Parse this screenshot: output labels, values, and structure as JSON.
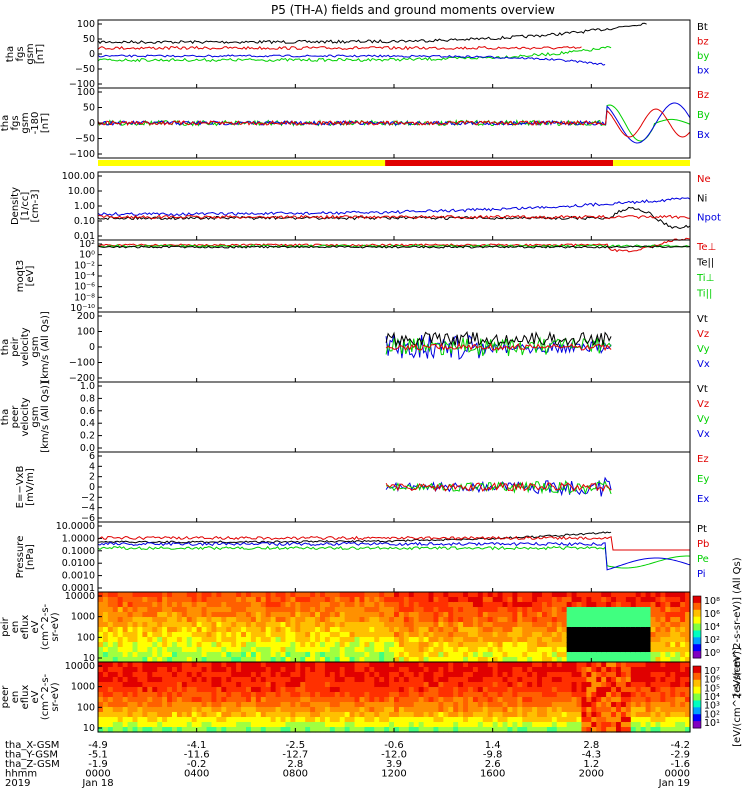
{
  "title": "P5 (TH-A) fields and ground moments overview",
  "colors": {
    "black": "#000000",
    "red": "#e00000",
    "green": "#00d000",
    "blue": "#0000e0"
  },
  "chart_data": [
    {
      "type": "line",
      "ylabel": [
        "tha",
        "fgs",
        "gsm",
        "[nT]"
      ],
      "ylim": [
        -100,
        100
      ],
      "yticks": [
        "100",
        "50",
        "0",
        "−50",
        "−100"
      ],
      "legend": [
        {
          "text": "Bt",
          "color": "#000000"
        },
        {
          "text": "bz",
          "color": "#e00000"
        },
        {
          "text": "by",
          "color": "#00d000"
        },
        {
          "text": "bx",
          "color": "#0000e0"
        }
      ]
    },
    {
      "type": "line",
      "ylabel": [
        "tha",
        "fgs",
        "gsm",
        "-180",
        "[nT]"
      ],
      "ylim": [
        -130,
        130
      ],
      "yticks": [
        "100",
        "50",
        "0",
        "−50",
        "−100"
      ],
      "legend": [
        {
          "text": "Bz",
          "color": "#e00000"
        },
        {
          "text": "By",
          "color": "#00d000"
        },
        {
          "text": "Bx",
          "color": "#0000e0"
        }
      ]
    },
    {
      "type": "line",
      "ylabel": [
        "Density",
        "[1/cc]",
        "[cm-3]"
      ],
      "scale": "log",
      "yticks": [
        "100.00",
        "10.00",
        "1.00",
        "0.10",
        "0.01"
      ],
      "legend": [
        {
          "text": "Ne",
          "color": "#e00000"
        },
        {
          "text": "Ni",
          "color": "#000000"
        },
        {
          "text": "Npot",
          "color": "#0000e0"
        }
      ]
    },
    {
      "type": "line",
      "ylabel": [
        "moqt3",
        "[eV]"
      ],
      "scale": "log",
      "yticks": [
        "10²",
        "10⁰",
        "10⁻²",
        "10⁻⁴",
        "10⁻⁶",
        "10⁻⁸",
        "10⁻¹⁰"
      ],
      "legend": [
        {
          "text": "Te⊥",
          "color": "#e00000"
        },
        {
          "text": "Te||",
          "color": "#000000"
        },
        {
          "text": "Ti⊥",
          "color": "#00d000"
        },
        {
          "text": "Ti||",
          "color": "#00d000"
        }
      ]
    },
    {
      "type": "line",
      "ylabel": [
        "tha",
        "peir",
        "velocity",
        "gsm",
        "[km/s (All Qs)]"
      ],
      "ylim": [
        -200,
        200
      ],
      "yticks": [
        "200",
        "100",
        "0",
        "−100",
        "−200"
      ],
      "legend": [
        {
          "text": "Vt",
          "color": "#000000"
        },
        {
          "text": "Vz",
          "color": "#e00000"
        },
        {
          "text": "Vy",
          "color": "#00d000"
        },
        {
          "text": "Vx",
          "color": "#0000e0"
        }
      ]
    },
    {
      "type": "line",
      "ylabel": [
        "tha",
        "peer",
        "velocity",
        "gsm",
        "[km/s (All Qs)]"
      ],
      "ylim": [
        0,
        1
      ],
      "yticks": [
        "1.0",
        "0.8",
        "0.6",
        "0.4",
        "0.2",
        "0.0"
      ],
      "legend": [
        {
          "text": "Vt",
          "color": "#000000"
        },
        {
          "text": "Vz",
          "color": "#e00000"
        },
        {
          "text": "Vy",
          "color": "#00d000"
        },
        {
          "text": "Vx",
          "color": "#0000e0"
        }
      ]
    },
    {
      "type": "line",
      "ylabel": [
        "E=−VxB",
        "[mV/m]"
      ],
      "ylim": [
        -6,
        6
      ],
      "yticks": [
        "6",
        "4",
        "2",
        "0",
        "−2",
        "−4",
        "−6"
      ],
      "legend": [
        {
          "text": "Ez",
          "color": "#e00000"
        },
        {
          "text": "Ey",
          "color": "#00d000"
        },
        {
          "text": "Ex",
          "color": "#0000e0"
        }
      ]
    },
    {
      "type": "line",
      "ylabel": [
        "Pressure",
        "[nPa]"
      ],
      "scale": "log",
      "yticks": [
        "10.0000",
        "1.0000",
        "0.1000",
        "0.0100",
        "0.0010",
        "0.0001"
      ],
      "legend": [
        {
          "text": "Pt",
          "color": "#000000"
        },
        {
          "text": "Pb",
          "color": "#e00000"
        },
        {
          "text": "Pe",
          "color": "#00d000"
        },
        {
          "text": "Pi",
          "color": "#0000e0"
        }
      ]
    },
    {
      "type": "heatmap",
      "ylabel": [
        "tha",
        "peir",
        "en",
        "eflux",
        "eV",
        "(cm^2-s-",
        "sr-eV)"
      ],
      "yticks": [
        "10000",
        "1000",
        "100",
        "10"
      ],
      "colorbar": {
        "ticks": [
          "10⁸",
          "10⁶",
          "10⁴",
          "10²",
          "10⁰"
        ],
        "label": "[eV/(cm^2-s-sr-eV)] (All Qs)"
      }
    },
    {
      "type": "heatmap",
      "ylabel": [
        "tha",
        "peer",
        "en",
        "eflux",
        "eV",
        "(cm^2-s-",
        "sr-eV)"
      ],
      "yticks": [
        "10000",
        "1000",
        "100",
        "10"
      ],
      "colorbar": {
        "ticks": [
          "10⁷",
          "10⁶",
          "10⁵",
          "10⁴",
          "10³",
          "10²",
          "10¹"
        ],
        "label": "[eV/(cm^2-s-sr-eV)]"
      }
    }
  ],
  "footer": {
    "labels": [
      "tha_X-GSM",
      "tha_Y-GSM",
      "tha_Z-GSM",
      "hhmm",
      "2019"
    ],
    "columns": [
      [
        "-4.9",
        "-5.1",
        "-1.9",
        "0000",
        "Jan 18"
      ],
      [
        "-4.1",
        "-11.6",
        "-0.2",
        "0400",
        ""
      ],
      [
        "-2.5",
        "-12.7",
        "2.8",
        "0800",
        ""
      ],
      [
        "-0.6",
        "-12.0",
        "3.9",
        "1200",
        ""
      ],
      [
        "1.4",
        "-9.8",
        "2.6",
        "1600",
        ""
      ],
      [
        "2.8",
        "-4.3",
        "1.2",
        "2000",
        ""
      ],
      [
        "-4.2",
        "-2.9",
        "-1.6",
        "0000",
        "Jan 19"
      ]
    ]
  }
}
